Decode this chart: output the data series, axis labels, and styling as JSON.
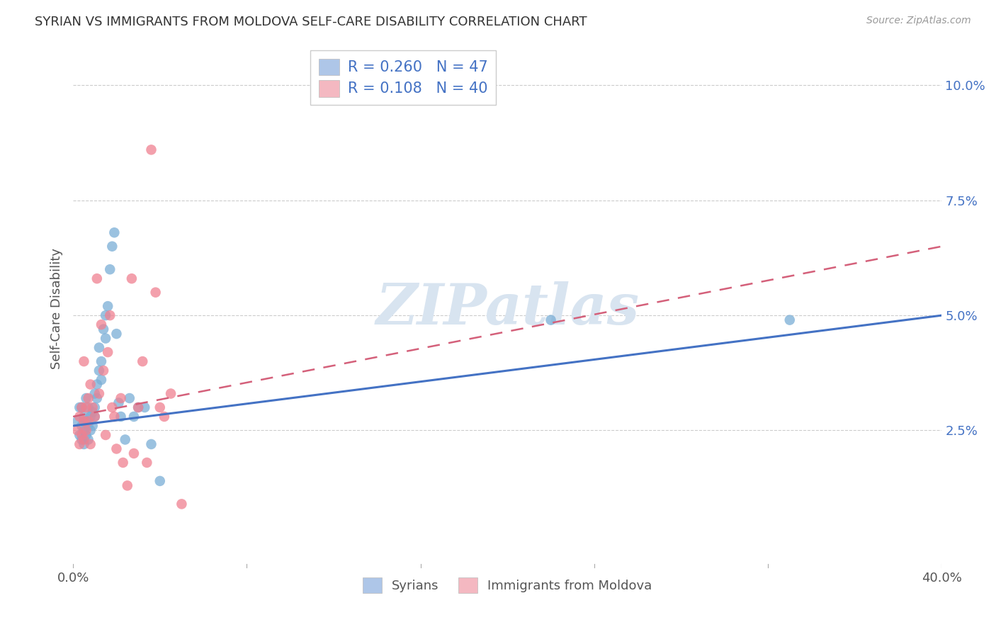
{
  "title": "SYRIAN VS IMMIGRANTS FROM MOLDOVA SELF-CARE DISABILITY CORRELATION CHART",
  "source": "Source: ZipAtlas.com",
  "ylabel": "Self-Care Disability",
  "ytick_labels": [
    "2.5%",
    "5.0%",
    "7.5%",
    "10.0%"
  ],
  "ytick_values": [
    0.025,
    0.05,
    0.075,
    0.1
  ],
  "xlim": [
    0.0,
    0.4
  ],
  "ylim": [
    -0.005,
    0.108
  ],
  "legend_label1": "R = 0.260   N = 47",
  "legend_label2": "R = 0.108   N = 40",
  "legend_color1": "#aec6e8",
  "legend_color2": "#f4b8c1",
  "scatter_color1": "#7aaed6",
  "scatter_color2": "#f08090",
  "trendline_color1": "#4472c4",
  "trendline_color2": "#d4607a",
  "watermark": "ZIPatlas",
  "watermark_color": "#d8e4f0",
  "bottom_legend1": "Syrians",
  "bottom_legend2": "Immigrants from Moldova",
  "syrians_x": [
    0.002,
    0.003,
    0.003,
    0.004,
    0.004,
    0.004,
    0.005,
    0.005,
    0.005,
    0.006,
    0.006,
    0.006,
    0.007,
    0.007,
    0.007,
    0.008,
    0.008,
    0.009,
    0.009,
    0.01,
    0.01,
    0.01,
    0.011,
    0.011,
    0.012,
    0.012,
    0.013,
    0.013,
    0.014,
    0.015,
    0.015,
    0.016,
    0.017,
    0.018,
    0.019,
    0.02,
    0.021,
    0.022,
    0.024,
    0.026,
    0.028,
    0.03,
    0.033,
    0.036,
    0.04,
    0.22,
    0.33
  ],
  "syrians_y": [
    0.027,
    0.024,
    0.03,
    0.023,
    0.026,
    0.03,
    0.022,
    0.025,
    0.028,
    0.024,
    0.027,
    0.032,
    0.023,
    0.026,
    0.03,
    0.025,
    0.028,
    0.026,
    0.029,
    0.028,
    0.03,
    0.033,
    0.032,
    0.035,
    0.038,
    0.043,
    0.04,
    0.036,
    0.047,
    0.045,
    0.05,
    0.052,
    0.06,
    0.065,
    0.068,
    0.046,
    0.031,
    0.028,
    0.023,
    0.032,
    0.028,
    0.03,
    0.03,
    0.022,
    0.014,
    0.049,
    0.049
  ],
  "moldova_x": [
    0.002,
    0.003,
    0.003,
    0.004,
    0.004,
    0.005,
    0.005,
    0.005,
    0.006,
    0.006,
    0.007,
    0.007,
    0.008,
    0.008,
    0.009,
    0.01,
    0.011,
    0.012,
    0.013,
    0.014,
    0.015,
    0.016,
    0.017,
    0.018,
    0.019,
    0.02,
    0.022,
    0.023,
    0.025,
    0.027,
    0.028,
    0.03,
    0.032,
    0.034,
    0.036,
    0.038,
    0.04,
    0.042,
    0.045,
    0.05
  ],
  "moldova_y": [
    0.025,
    0.022,
    0.028,
    0.03,
    0.024,
    0.023,
    0.027,
    0.04,
    0.025,
    0.03,
    0.032,
    0.027,
    0.035,
    0.022,
    0.03,
    0.028,
    0.058,
    0.033,
    0.048,
    0.038,
    0.024,
    0.042,
    0.05,
    0.03,
    0.028,
    0.021,
    0.032,
    0.018,
    0.013,
    0.058,
    0.02,
    0.03,
    0.04,
    0.018,
    0.086,
    0.055,
    0.03,
    0.028,
    0.033,
    0.009
  ],
  "trendline1_x0": 0.0,
  "trendline1_x1": 0.4,
  "trendline1_y0": 0.026,
  "trendline1_y1": 0.05,
  "trendline2_x0": 0.0,
  "trendline2_x1": 0.4,
  "trendline2_y0": 0.028,
  "trendline2_y1": 0.065
}
